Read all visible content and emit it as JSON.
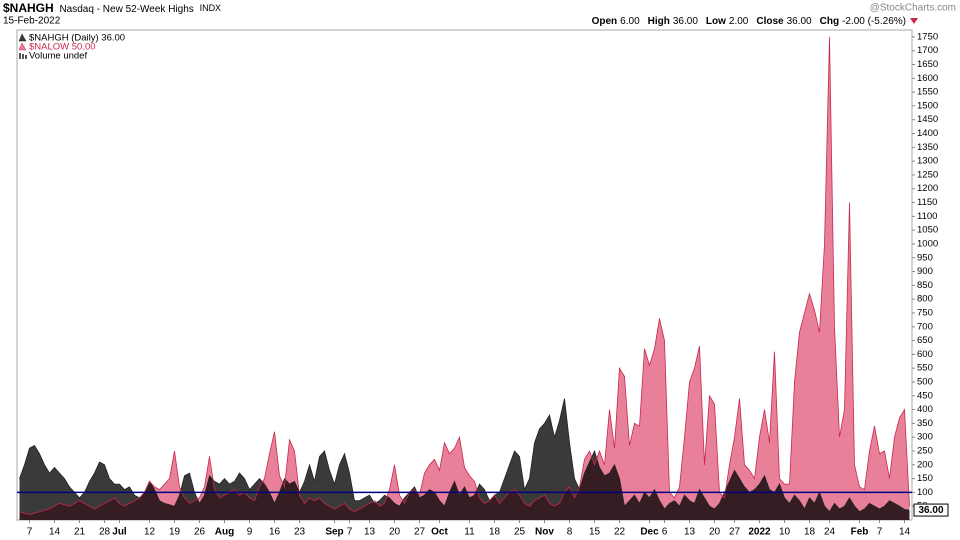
{
  "header": {
    "symbol": "$NAHGH",
    "description": "Nasdaq - New 52-Week Highs",
    "exchange": "INDX",
    "date": "15-Feb-2022",
    "watermark": "@StockCharts.com",
    "quote": [
      [
        "Open",
        "6.00"
      ],
      [
        "High",
        "36.00"
      ],
      [
        "Low",
        "2.00"
      ],
      [
        "Close",
        "36.00"
      ],
      [
        "Chg",
        "-2.00 (-5.26%)"
      ]
    ]
  },
  "chart_data": {
    "type": "area",
    "categories": [
      null,
      null,
      "7",
      null,
      null,
      null,
      null,
      "14",
      null,
      null,
      null,
      null,
      "21",
      null,
      null,
      null,
      null,
      "28",
      null,
      null,
      "Jul",
      null,
      null,
      null,
      null,
      null,
      "12",
      null,
      null,
      null,
      null,
      "19",
      null,
      null,
      null,
      null,
      "26",
      null,
      null,
      null,
      null,
      "Aug",
      null,
      null,
      null,
      null,
      "9",
      null,
      null,
      null,
      null,
      "16",
      null,
      null,
      null,
      null,
      "23",
      null,
      null,
      null,
      null,
      null,
      null,
      "Sep",
      null,
      null,
      "7",
      null,
      null,
      null,
      "13",
      null,
      null,
      null,
      null,
      "20",
      null,
      null,
      null,
      null,
      "27",
      null,
      null,
      null,
      "Oct",
      null,
      null,
      null,
      null,
      null,
      "11",
      null,
      null,
      null,
      null,
      "18",
      null,
      null,
      null,
      null,
      "25",
      null,
      null,
      null,
      null,
      "Nov",
      null,
      null,
      null,
      null,
      "8",
      null,
      null,
      null,
      null,
      "15",
      null,
      null,
      null,
      null,
      "22",
      null,
      null,
      null,
      null,
      null,
      "Dec",
      null,
      null,
      "6",
      null,
      null,
      null,
      null,
      "13",
      null,
      null,
      null,
      null,
      "20",
      null,
      null,
      null,
      "27",
      null,
      null,
      null,
      null,
      "2022",
      null,
      null,
      null,
      null,
      "10",
      null,
      null,
      null,
      null,
      "18",
      null,
      null,
      null,
      "24",
      null,
      null,
      null,
      null,
      null,
      "Feb",
      null,
      null,
      null,
      "7",
      null,
      null,
      null,
      null,
      "14",
      null
    ],
    "series": [
      {
        "name": "$NAHGH (Daily) 36.00",
        "color": "#3a3a3a",
        "stroke": "#222222",
        "values": [
          150,
          200,
          260,
          270,
          240,
          200,
          170,
          190,
          170,
          150,
          120,
          100,
          80,
          100,
          140,
          170,
          210,
          200,
          150,
          130,
          130,
          110,
          120,
          90,
          80,
          100,
          140,
          110,
          70,
          60,
          55,
          50,
          90,
          160,
          170,
          100,
          60,
          90,
          160,
          140,
          130,
          150,
          130,
          140,
          170,
          150,
          110,
          130,
          150,
          130,
          100,
          60,
          100,
          150,
          130,
          140,
          100,
          140,
          200,
          140,
          230,
          250,
          180,
          130,
          200,
          240,
          170,
          70,
          70,
          80,
          90,
          60,
          70,
          90,
          80,
          60,
          50,
          80,
          100,
          120,
          80,
          90,
          110,
          100,
          70,
          50,
          100,
          140,
          90,
          120,
          80,
          90,
          130,
          110,
          70,
          90,
          100,
          150,
          200,
          250,
          230,
          110,
          150,
          280,
          330,
          350,
          380,
          300,
          360,
          440,
          280,
          150,
          110,
          170,
          210,
          250,
          190,
          160,
          170,
          200,
          150,
          50,
          70,
          90,
          60,
          100,
          80,
          110,
          70,
          40,
          60,
          70,
          50,
          90,
          70,
          60,
          110,
          80,
          50,
          40,
          60,
          100,
          140,
          180,
          150,
          120,
          100,
          110,
          130,
          160,
          110,
          100,
          130,
          80,
          60,
          90,
          70,
          40,
          80,
          60,
          100,
          50,
          30,
          60,
          40,
          50,
          80,
          50,
          30,
          40,
          60,
          50,
          40,
          50,
          70,
          60,
          50,
          38,
          36
        ]
      },
      {
        "name": "$NALOW 50.00",
        "color": "#e8809a",
        "stroke": "#c8284a",
        "values": [
          30,
          25,
          20,
          25,
          30,
          35,
          40,
          50,
          60,
          55,
          50,
          60,
          70,
          60,
          50,
          40,
          50,
          60,
          70,
          80,
          60,
          50,
          60,
          70,
          80,
          100,
          140,
          120,
          110,
          130,
          150,
          250,
          120,
          80,
          60,
          70,
          80,
          120,
          230,
          110,
          80,
          90,
          100,
          110,
          90,
          100,
          80,
          70,
          120,
          150,
          240,
          320,
          160,
          120,
          290,
          250,
          90,
          60,
          80,
          70,
          80,
          60,
          50,
          40,
          50,
          60,
          40,
          30,
          40,
          50,
          60,
          70,
          50,
          60,
          110,
          200,
          90,
          60,
          100,
          110,
          90,
          170,
          200,
          220,
          180,
          280,
          240,
          260,
          300,
          190,
          160,
          140,
          80,
          60,
          70,
          90,
          60,
          80,
          100,
          110,
          90,
          60,
          50,
          70,
          80,
          90,
          60,
          50,
          60,
          100,
          120,
          80,
          120,
          220,
          250,
          200,
          250,
          200,
          400,
          260,
          550,
          520,
          270,
          350,
          340,
          620,
          560,
          620,
          730,
          650,
          100,
          80,
          120,
          300,
          500,
          550,
          630,
          200,
          450,
          420,
          100,
          80,
          200,
          300,
          440,
          200,
          180,
          150,
          300,
          400,
          280,
          610,
          150,
          130,
          130,
          500,
          680,
          750,
          820,
          760,
          680,
          1000,
          1750,
          700,
          300,
          400,
          1150,
          200,
          120,
          110,
          250,
          340,
          240,
          250,
          150,
          300,
          370,
          400,
          50
        ]
      }
    ],
    "legend_extra": "Volume undef",
    "last_value_label": "36.00",
    "hline": {
      "value": 100,
      "color": "#000080"
    },
    "ylim": [
      0,
      1775
    ],
    "yticks": [
      50,
      100,
      150,
      200,
      250,
      300,
      350,
      400,
      450,
      500,
      550,
      600,
      650,
      700,
      750,
      800,
      850,
      900,
      950,
      1000,
      1050,
      1100,
      1150,
      1200,
      1250,
      1300,
      1350,
      1400,
      1450,
      1500,
      1550,
      1600,
      1650,
      1700,
      1750
    ]
  }
}
